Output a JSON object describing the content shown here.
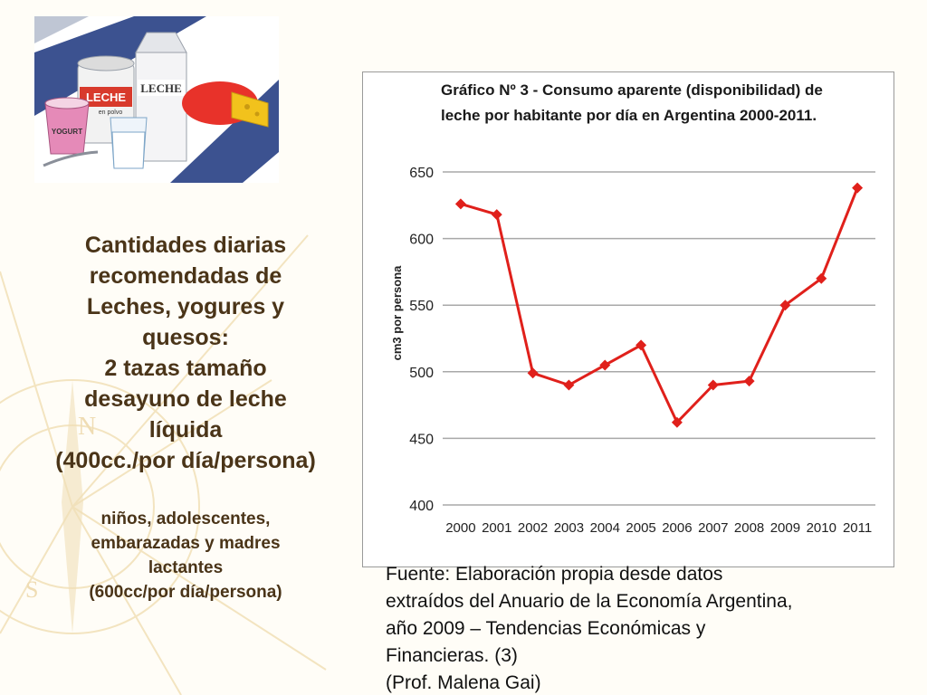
{
  "left_panel": {
    "main_lines": [
      "Cantidades diarias",
      "recomendadas de",
      "Leches, yogures y",
      "quesos:",
      "2 tazas tamaño",
      "desayuno de leche",
      "líquida",
      "(400cc./por día/persona)"
    ],
    "note_lines": [
      "niños, adolescentes,",
      "embarazadas y madres",
      "lactantes",
      "(600cc/por día/persona)"
    ]
  },
  "illustration": {
    "labels": [
      "LECHE",
      "en polvo",
      "LECHE",
      "YOGURT"
    ]
  },
  "colors": {
    "series": "#e0201b",
    "grid": "#a8a8a8",
    "text": "#4a3418"
  },
  "chart_data": {
    "type": "line",
    "title_lines": [
      "Gráfico Nº 3 - Consumo aparente (disponibilidad) de",
      "leche por habitante por día en Argentina 2000-2011."
    ],
    "xlabel": "",
    "ylabel": "cm3 por persona",
    "x": [
      "2000",
      "2001",
      "2002",
      "2003",
      "2004",
      "2005",
      "2006",
      "2007",
      "2008",
      "2009",
      "2010",
      "2011"
    ],
    "series": [
      {
        "values": [
          626,
          618,
          499,
          490,
          505,
          520,
          462,
          490,
          493,
          550,
          570,
          638
        ]
      }
    ],
    "ylim": [
      400,
      650
    ],
    "yticks": [
      400,
      450,
      500,
      550,
      600,
      650
    ],
    "grid": true,
    "marker": "diamond",
    "legend": "none"
  },
  "source": {
    "lines": [
      "Fuente: Elaboración propia desde datos",
      "extraídos del Anuario de la Economía Argentina,",
      "año 2009 – Tendencias Económicas y",
      "Financieras. (3)",
      "(Prof. Malena Gai)"
    ]
  }
}
